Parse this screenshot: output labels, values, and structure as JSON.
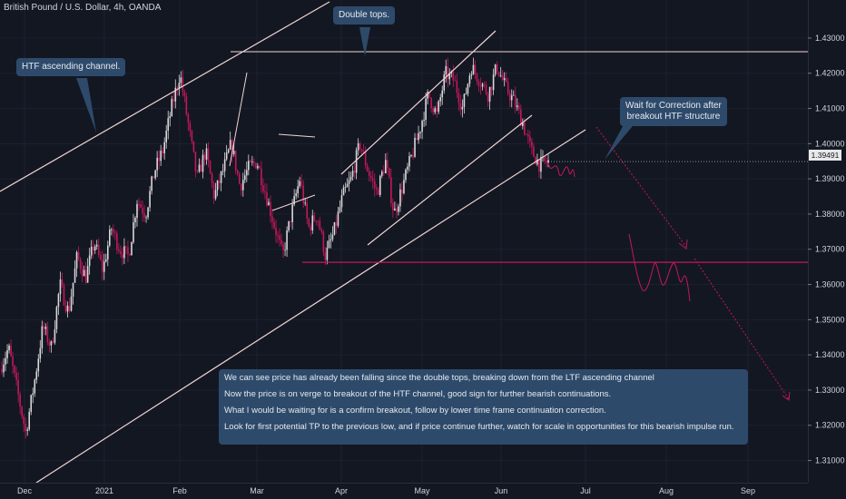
{
  "chart_data": {
    "type": "candlestick",
    "title": "British Pound / U.S. Dollar, 4h, OANDA",
    "x_ticks": [
      "Dec",
      "2021",
      "Feb",
      "Mar",
      "Apr",
      "May",
      "Jun",
      "Jul",
      "Aug",
      "Sep"
    ],
    "y_ticks": [
      "1.43000",
      "1.42000",
      "1.41000",
      "1.40000",
      "1.39000",
      "1.38000",
      "1.37000",
      "1.36000",
      "1.35000",
      "1.34000",
      "1.33000",
      "1.32000",
      "1.31000"
    ],
    "ylim": [
      1.3037,
      1.4408
    ],
    "current_price": "1.39491",
    "support_level": 1.3663,
    "resistance_level": 1.4243,
    "colors": {
      "bull": "#d8d8d8",
      "bear": "#c2185b",
      "line": "#f2d4d4",
      "projection": "#c2185b",
      "background": "#131722"
    },
    "price_path": [
      [
        0.0,
        1.336
      ],
      [
        0.02,
        1.342
      ],
      [
        0.04,
        1.33
      ],
      [
        0.06,
        1.318
      ],
      [
        0.08,
        1.332
      ],
      [
        0.1,
        1.348
      ],
      [
        0.12,
        1.342
      ],
      [
        0.14,
        1.36
      ],
      [
        0.16,
        1.352
      ],
      [
        0.18,
        1.368
      ],
      [
        0.2,
        1.362
      ],
      [
        0.22,
        1.372
      ],
      [
        0.24,
        1.364
      ],
      [
        0.26,
        1.376
      ],
      [
        0.28,
        1.37
      ],
      [
        0.3,
        1.368
      ],
      [
        0.32,
        1.384
      ],
      [
        0.34,
        1.38
      ],
      [
        0.36,
        1.392
      ],
      [
        0.38,
        1.398
      ],
      [
        0.4,
        1.41
      ],
      [
        0.42,
        1.42
      ],
      [
        0.44,
        1.405
      ],
      [
        0.46,
        1.39
      ],
      [
        0.48,
        1.398
      ],
      [
        0.5,
        1.385
      ],
      [
        0.52,
        1.392
      ],
      [
        0.54,
        1.4
      ],
      [
        0.56,
        1.388
      ],
      [
        0.58,
        1.393
      ],
      [
        0.6,
        1.395
      ],
      [
        0.62,
        1.386
      ],
      [
        0.64,
        1.377
      ],
      [
        0.66,
        1.368
      ],
      [
        0.68,
        1.38
      ],
      [
        0.7,
        1.39
      ],
      [
        0.72,
        1.376
      ],
      [
        0.74,
        1.38
      ],
      [
        0.76,
        1.368
      ],
      [
        0.78,
        1.375
      ],
      [
        0.8,
        1.385
      ],
      [
        0.82,
        1.39
      ],
      [
        0.84,
        1.4
      ],
      [
        0.86,
        1.392
      ],
      [
        0.88,
        1.386
      ],
      [
        0.9,
        1.395
      ],
      [
        0.92,
        1.38
      ],
      [
        0.94,
        1.388
      ],
      [
        0.96,
        1.396
      ],
      [
        0.98,
        1.404
      ],
      [
        1.0,
        1.414
      ],
      [
        1.02,
        1.408
      ],
      [
        1.04,
        1.42
      ],
      [
        1.06,
        1.418
      ],
      [
        1.08,
        1.41
      ],
      [
        1.1,
        1.422
      ],
      [
        1.12,
        1.418
      ],
      [
        1.14,
        1.414
      ],
      [
        1.16,
        1.422
      ],
      [
        1.18,
        1.416
      ],
      [
        1.2,
        1.412
      ],
      [
        1.22,
        1.406
      ],
      [
        1.24,
        1.398
      ],
      [
        1.26,
        1.394
      ],
      [
        1.28,
        1.3949
      ]
    ]
  },
  "annotations": {
    "htf_channel": "HTF ascending channel.",
    "double_tops": "Double tops.",
    "wait_line1": "Wait for Correction after",
    "wait_line2": "breakout HTF structure",
    "info_line1": "We can see price has already been falling since the double tops, breaking down from the LTF ascending channel",
    "info_line2": "Now the price is on verge to breakout of the HTF channel, good sign for further bearish continuations.",
    "info_line3": "What I would be waiting for is a confirm breakout, follow by lower time frame continuation correction.",
    "info_line4": "Look for first potential TP to the previous low, and if price continue further, watch for scale in opportunities for this bearish impulse run."
  }
}
